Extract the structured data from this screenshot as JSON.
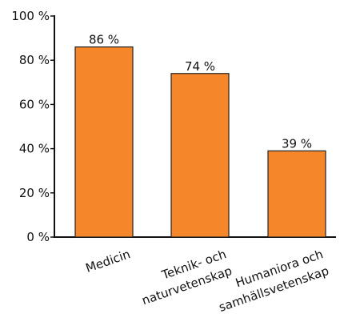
{
  "chart_data": {
    "type": "bar",
    "categories": [
      [
        "Medicin"
      ],
      [
        "Teknik- och",
        "naturvetenskap"
      ],
      [
        "Humaniora och",
        "samhällsvetenskap"
      ]
    ],
    "values": [
      86,
      74,
      39
    ],
    "data_labels": [
      "86 %",
      "74 %",
      "39 %"
    ],
    "y_ticks": [
      {
        "value": 0,
        "label": "0 %"
      },
      {
        "value": 20,
        "label": "20 %"
      },
      {
        "value": 40,
        "label": "40 %"
      },
      {
        "value": 60,
        "label": "60 %"
      },
      {
        "value": 80,
        "label": "80 %"
      },
      {
        "value": 100,
        "label": "100 %"
      }
    ],
    "ylim": [
      0,
      100
    ],
    "grid": false,
    "bar_color": "#f5862a",
    "bar_edge_color": "#222222",
    "title": "",
    "xlabel": "",
    "ylabel": ""
  }
}
